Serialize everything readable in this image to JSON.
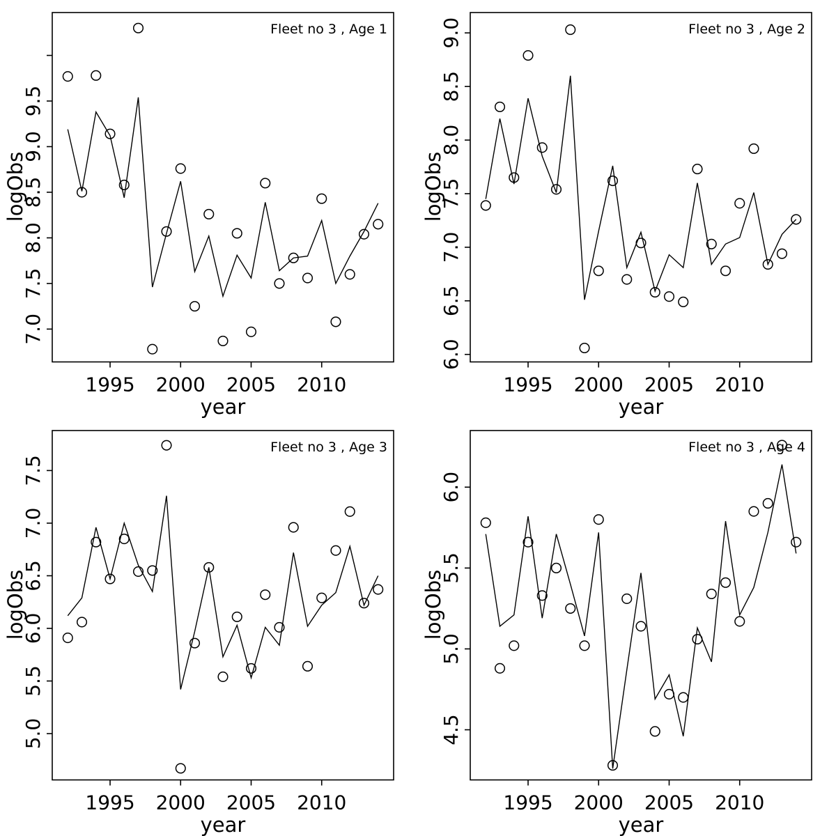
{
  "figure": {
    "background": "#ffffff",
    "stroke_color": "#000000",
    "marker": "open-circle",
    "panel_count": 4
  },
  "chart_data": [
    {
      "type": "line",
      "title": "Fleet no 3 , Age 1",
      "xlabel": "year",
      "ylabel": "logObs",
      "x": [
        1992,
        1993,
        1994,
        1995,
        1996,
        1997,
        1998,
        1999,
        2000,
        2001,
        2002,
        2003,
        2004,
        2005,
        2006,
        2007,
        2008,
        2009,
        2010,
        2011,
        2012,
        2013,
        2014
      ],
      "series": [
        {
          "name": "observed",
          "marker": "open-circle",
          "values": [
            9.77,
            8.5,
            9.78,
            9.14,
            8.58,
            10.3,
            6.78,
            8.07,
            8.76,
            7.25,
            8.26,
            6.87,
            8.05,
            6.97,
            8.6,
            7.5,
            7.78,
            7.56,
            8.43,
            7.08,
            7.6,
            8.04,
            8.15
          ]
        },
        {
          "name": "fitted",
          "marker": "line",
          "values": [
            9.19,
            8.51,
            9.38,
            9.12,
            8.44,
            9.54,
            7.46,
            8.05,
            8.62,
            7.63,
            8.02,
            7.36,
            7.81,
            7.56,
            8.39,
            7.64,
            7.78,
            7.8,
            8.19,
            7.5,
            7.8,
            8.07,
            8.38
          ]
        }
      ],
      "xlim": [
        1990.9,
        2015.1
      ],
      "ylim": [
        6.64,
        10.47
      ],
      "xticks": [
        1995,
        2000,
        2005,
        2010
      ],
      "yticks": [
        7.0,
        7.5,
        8.0,
        8.5,
        9.0,
        9.5,
        10.0
      ],
      "ytick_labels": [
        "7.0",
        "7.5",
        "8.0",
        "8.5",
        "9.0",
        "9.5",
        ""
      ],
      "grid": false,
      "legend": "none"
    },
    {
      "type": "line",
      "title": "Fleet no 3 , Age 2",
      "xlabel": "year",
      "ylabel": "logObs",
      "x": [
        1992,
        1993,
        1994,
        1995,
        1996,
        1997,
        1998,
        1999,
        2000,
        2001,
        2002,
        2003,
        2004,
        2005,
        2006,
        2007,
        2008,
        2009,
        2010,
        2011,
        2012,
        2013,
        2014
      ],
      "series": [
        {
          "name": "observed",
          "marker": "open-circle",
          "values": [
            7.39,
            8.31,
            7.65,
            8.79,
            7.93,
            7.54,
            9.03,
            6.06,
            6.78,
            7.62,
            6.7,
            7.04,
            6.58,
            6.54,
            6.49,
            7.73,
            7.03,
            6.78,
            7.41,
            7.92,
            6.84,
            6.94,
            7.26
          ]
        },
        {
          "name": "fitted",
          "marker": "line",
          "values": [
            7.45,
            8.2,
            7.59,
            8.39,
            7.85,
            7.51,
            8.6,
            6.51,
            7.15,
            7.76,
            6.81,
            7.14,
            6.59,
            6.93,
            6.81,
            7.6,
            6.84,
            7.03,
            7.09,
            7.51,
            6.84,
            7.12,
            7.26
          ]
        }
      ],
      "xlim": [
        1990.9,
        2015.1
      ],
      "ylim": [
        5.93,
        9.19
      ],
      "xticks": [
        1995,
        2000,
        2005,
        2010
      ],
      "yticks": [
        6.0,
        6.5,
        7.0,
        7.5,
        8.0,
        8.5,
        9.0
      ],
      "ytick_labels": [
        "6.0",
        "6.5",
        "7.0",
        "7.5",
        "8.0",
        "8.5",
        "9.0"
      ],
      "grid": false,
      "legend": "none"
    },
    {
      "type": "line",
      "title": "Fleet no 3 , Age 3",
      "xlabel": "year",
      "ylabel": "logObs",
      "x": [
        1992,
        1993,
        1994,
        1995,
        1996,
        1997,
        1998,
        1999,
        2000,
        2001,
        2002,
        2003,
        2004,
        2005,
        2006,
        2007,
        2008,
        2009,
        2010,
        2011,
        2012,
        2013,
        2014
      ],
      "series": [
        {
          "name": "observed",
          "marker": "open-circle",
          "values": [
            5.91,
            6.06,
            6.82,
            6.47,
            6.85,
            6.54,
            6.55,
            7.74,
            4.67,
            5.86,
            6.58,
            5.54,
            6.11,
            5.62,
            6.32,
            6.01,
            6.96,
            5.64,
            6.29,
            6.74,
            7.11,
            6.24,
            6.37
          ]
        },
        {
          "name": "fitted",
          "marker": "line",
          "values": [
            6.12,
            6.29,
            6.96,
            6.47,
            7.0,
            6.6,
            6.35,
            7.26,
            5.42,
            5.97,
            6.58,
            5.73,
            6.03,
            5.53,
            6.01,
            5.84,
            6.72,
            6.02,
            6.22,
            6.34,
            6.78,
            6.22,
            6.5
          ]
        }
      ],
      "xlim": [
        1990.9,
        2015.1
      ],
      "ylim": [
        4.56,
        7.88
      ],
      "xticks": [
        1995,
        2000,
        2005,
        2010
      ],
      "yticks": [
        5.0,
        5.5,
        6.0,
        6.5,
        7.0,
        7.5
      ],
      "ytick_labels": [
        "5.0",
        "5.5",
        "6.0",
        "6.5",
        "7.0",
        "7.5"
      ],
      "grid": false,
      "legend": "none"
    },
    {
      "type": "line",
      "title": "Fleet no 3 , Age 4",
      "xlabel": "year",
      "ylabel": "logObs",
      "x": [
        1992,
        1993,
        1994,
        1995,
        1996,
        1997,
        1998,
        1999,
        2000,
        2001,
        2002,
        2003,
        2004,
        2005,
        2006,
        2007,
        2008,
        2009,
        2010,
        2011,
        2012,
        2013,
        2014
      ],
      "series": [
        {
          "name": "observed",
          "marker": "open-circle",
          "values": [
            5.78,
            4.88,
            5.02,
            5.66,
            5.33,
            5.5,
            5.25,
            5.02,
            5.8,
            4.28,
            5.31,
            5.14,
            4.49,
            4.72,
            4.7,
            5.06,
            5.34,
            5.41,
            5.17,
            5.85,
            5.9,
            6.26,
            5.66
          ]
        },
        {
          "name": "fitted",
          "marker": "line",
          "values": [
            5.71,
            5.14,
            5.21,
            5.82,
            5.19,
            5.71,
            5.4,
            5.08,
            5.72,
            4.26,
            4.87,
            5.47,
            4.69,
            4.84,
            4.46,
            5.13,
            4.92,
            5.79,
            5.21,
            5.38,
            5.72,
            6.14,
            5.59
          ]
        }
      ],
      "xlim": [
        1990.9,
        2015.1
      ],
      "ylim": [
        4.19,
        6.35
      ],
      "xticks": [
        1995,
        2000,
        2005,
        2010
      ],
      "yticks": [
        4.5,
        5.0,
        5.5,
        6.0
      ],
      "ytick_labels": [
        "4.5",
        "5.0",
        "5.5",
        "6.0"
      ],
      "grid": false,
      "legend": "none"
    }
  ]
}
